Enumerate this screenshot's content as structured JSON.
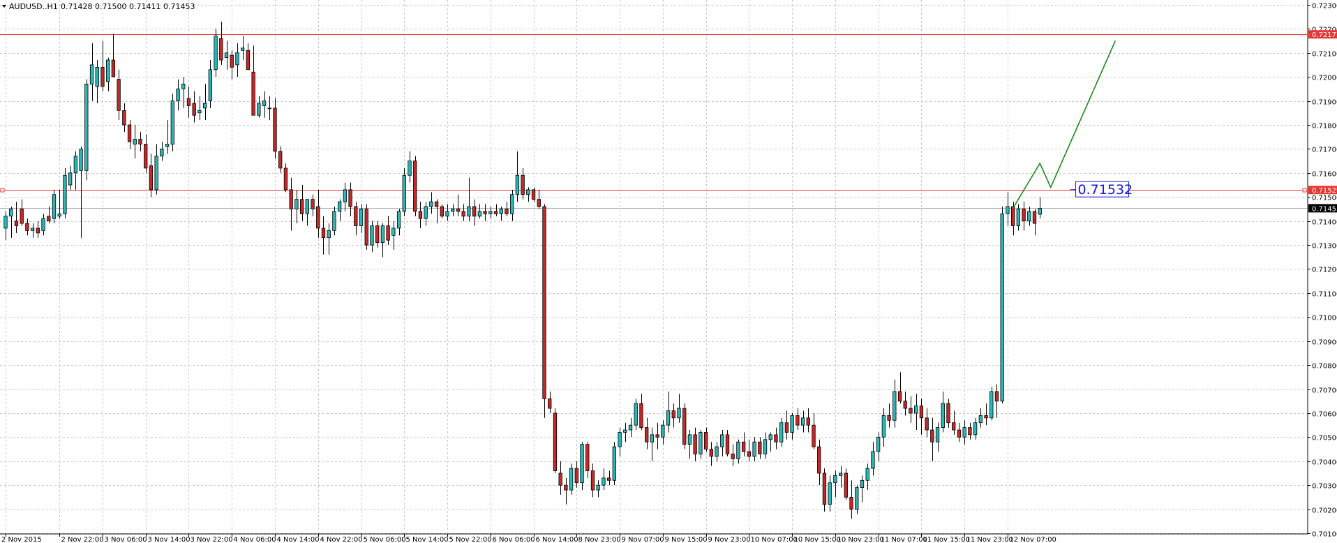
{
  "header": {
    "menu_icon": "triangle-down-icon",
    "symbol": "AUDUSD..H1",
    "ohlc": "0.71428 0.71500 0.71411 0.71453"
  },
  "colors": {
    "background": "#ffffff",
    "grid": "#c8c8c8",
    "bull": "#2bb7b7",
    "bear": "#c62828",
    "wick": "#000000",
    "level_line": "#e53935",
    "current_price_line": "#b0b0b0",
    "forecast": "#1a8a1a",
    "annotation": "#1414e6"
  },
  "chart_data": {
    "type": "candlestick",
    "instrument": "AUDUSD",
    "timeframe": "H1",
    "ylim": [
      0.701,
      0.7232
    ],
    "y_ticks": [
      "0.72300",
      "0.72200",
      "0.72100",
      "0.72000",
      "0.71900",
      "0.71800",
      "0.71700",
      "0.71600",
      "0.71500",
      "0.71400",
      "0.71300",
      "0.71200",
      "0.71100",
      "0.71000",
      "0.70900",
      "0.70800",
      "0.70700",
      "0.70600",
      "0.70500",
      "0.70400",
      "0.70300",
      "0.70200",
      "0.70100"
    ],
    "x_ticks": [
      {
        "label": "2 Nov 2015",
        "bar": 0
      },
      {
        "label": "2 Nov 22:00",
        "bar": 10
      },
      {
        "label": "3 Nov 06:00",
        "bar": 18
      },
      {
        "label": "3 Nov 14:00",
        "bar": 26
      },
      {
        "label": "3 Nov 22:00",
        "bar": 34
      },
      {
        "label": "4 Nov 06:00",
        "bar": 42
      },
      {
        "label": "4 Nov 14:00",
        "bar": 50
      },
      {
        "label": "4 Nov 22:00",
        "bar": 58
      },
      {
        "label": "5 Nov 06:00",
        "bar": 66
      },
      {
        "label": "5 Nov 14:00",
        "bar": 74
      },
      {
        "label": "5 Nov 22:00",
        "bar": 82
      },
      {
        "label": "6 Nov 06:00",
        "bar": 90
      },
      {
        "label": "6 Nov 14:00",
        "bar": 98
      },
      {
        "label": "8 Nov 23:00",
        "bar": 106
      },
      {
        "label": "9 Nov 07:00",
        "bar": 114
      },
      {
        "label": "9 Nov 15:00",
        "bar": 122
      },
      {
        "label": "9 Nov 23:00",
        "bar": 130
      },
      {
        "label": "10 Nov 07:00",
        "bar": 138
      },
      {
        "label": "10 Nov 15:00",
        "bar": 146
      },
      {
        "label": "10 Nov 23:00",
        "bar": 154
      },
      {
        "label": "11 Nov 07:00",
        "bar": 162
      },
      {
        "label": "11 Nov 15:00",
        "bar": 170
      },
      {
        "label": "11 Nov 23:00",
        "bar": 178
      },
      {
        "label": "12 Nov 07:00",
        "bar": 186
      }
    ],
    "candles": [
      [
        0.7137,
        0.7144,
        0.7132,
        0.7142
      ],
      [
        0.7142,
        0.7146,
        0.7133,
        0.7145
      ],
      [
        0.714,
        0.7148,
        0.7135,
        0.7138
      ],
      [
        0.7145,
        0.7149,
        0.7138,
        0.7139
      ],
      [
        0.7139,
        0.7141,
        0.7134,
        0.7136
      ],
      [
        0.7136,
        0.7139,
        0.7133,
        0.7137
      ],
      [
        0.7137,
        0.714,
        0.7133,
        0.7135
      ],
      [
        0.7136,
        0.7143,
        0.7134,
        0.7141
      ],
      [
        0.7142,
        0.7146,
        0.7139,
        0.714
      ],
      [
        0.7141,
        0.7153,
        0.7139,
        0.7151
      ],
      [
        0.7142,
        0.7153,
        0.7141,
        0.7143
      ],
      [
        0.7143,
        0.7162,
        0.7141,
        0.7159
      ],
      [
        0.7155,
        0.7163,
        0.7153,
        0.716
      ],
      [
        0.716,
        0.7169,
        0.7153,
        0.7167
      ],
      [
        0.7161,
        0.7171,
        0.7133,
        0.717
      ],
      [
        0.7161,
        0.7199,
        0.7157,
        0.7197
      ],
      [
        0.7197,
        0.7214,
        0.719,
        0.7205
      ],
      [
        0.7196,
        0.7207,
        0.7189,
        0.7204
      ],
      [
        0.7204,
        0.7215,
        0.7194,
        0.7196
      ],
      [
        0.7198,
        0.7208,
        0.7194,
        0.7207
      ],
      [
        0.7207,
        0.7218,
        0.7201,
        0.72
      ],
      [
        0.7199,
        0.7203,
        0.7182,
        0.7186
      ],
      [
        0.7186,
        0.7189,
        0.7177,
        0.718
      ],
      [
        0.718,
        0.7182,
        0.717,
        0.7173
      ],
      [
        0.7172,
        0.718,
        0.7166,
        0.7174
      ],
      [
        0.7174,
        0.7177,
        0.7169,
        0.7172
      ],
      [
        0.7172,
        0.7176,
        0.716,
        0.7162
      ],
      [
        0.7163,
        0.7168,
        0.715,
        0.7153
      ],
      [
        0.7153,
        0.7172,
        0.7151,
        0.7167
      ],
      [
        0.7167,
        0.7173,
        0.7165,
        0.717
      ],
      [
        0.7171,
        0.7182,
        0.7168,
        0.7172
      ],
      [
        0.7172,
        0.7193,
        0.7169,
        0.719
      ],
      [
        0.719,
        0.7199,
        0.7186,
        0.7195
      ],
      [
        0.7195,
        0.72,
        0.7187,
        0.7197
      ],
      [
        0.7191,
        0.7196,
        0.7183,
        0.7188
      ],
      [
        0.7189,
        0.7194,
        0.7181,
        0.7184
      ],
      [
        0.7185,
        0.7192,
        0.7182,
        0.7186
      ],
      [
        0.7187,
        0.7197,
        0.7182,
        0.7189
      ],
      [
        0.719,
        0.7207,
        0.7187,
        0.7203
      ],
      [
        0.7203,
        0.722,
        0.72,
        0.7217
      ],
      [
        0.7216,
        0.7223,
        0.7205,
        0.7207
      ],
      [
        0.7208,
        0.7215,
        0.7203,
        0.721
      ],
      [
        0.7209,
        0.7211,
        0.7199,
        0.7204
      ],
      [
        0.7205,
        0.7214,
        0.72,
        0.721
      ],
      [
        0.7211,
        0.7217,
        0.7207,
        0.7212
      ],
      [
        0.7211,
        0.7214,
        0.7203,
        0.7203
      ],
      [
        0.7202,
        0.7213,
        0.7184,
        0.7184
      ],
      [
        0.7184,
        0.7192,
        0.7183,
        0.7189
      ],
      [
        0.7188,
        0.7194,
        0.7183,
        0.719
      ],
      [
        0.7187,
        0.7192,
        0.7182,
        0.7187
      ],
      [
        0.7187,
        0.7191,
        0.7166,
        0.7169
      ],
      [
        0.7169,
        0.7171,
        0.716,
        0.7162
      ],
      [
        0.7162,
        0.7164,
        0.7152,
        0.7153
      ],
      [
        0.7153,
        0.7158,
        0.7136,
        0.7145
      ],
      [
        0.7145,
        0.7153,
        0.7139,
        0.7149
      ],
      [
        0.7149,
        0.7155,
        0.714,
        0.7143
      ],
      [
        0.7143,
        0.7149,
        0.7138,
        0.7149
      ],
      [
        0.7149,
        0.7151,
        0.7142,
        0.7145
      ],
      [
        0.7146,
        0.7153,
        0.7133,
        0.7137
      ],
      [
        0.7137,
        0.7142,
        0.7126,
        0.7133
      ],
      [
        0.7133,
        0.7139,
        0.7126,
        0.7136
      ],
      [
        0.7136,
        0.7146,
        0.7134,
        0.7144
      ],
      [
        0.7144,
        0.7149,
        0.714,
        0.7148
      ],
      [
        0.7148,
        0.7156,
        0.7144,
        0.7153
      ],
      [
        0.7153,
        0.7156,
        0.7142,
        0.7146
      ],
      [
        0.7146,
        0.7148,
        0.7134,
        0.7138
      ],
      [
        0.7138,
        0.7147,
        0.7135,
        0.7145
      ],
      [
        0.7145,
        0.7147,
        0.7128,
        0.713
      ],
      [
        0.713,
        0.714,
        0.7127,
        0.7138
      ],
      [
        0.7138,
        0.714,
        0.7129,
        0.7131
      ],
      [
        0.7131,
        0.7139,
        0.7125,
        0.7138
      ],
      [
        0.7138,
        0.7142,
        0.713,
        0.7132
      ],
      [
        0.7134,
        0.714,
        0.7128,
        0.7137
      ],
      [
        0.7137,
        0.7145,
        0.7134,
        0.7144
      ],
      [
        0.7144,
        0.7162,
        0.7142,
        0.7159
      ],
      [
        0.7159,
        0.7169,
        0.7156,
        0.7165
      ],
      [
        0.7165,
        0.7167,
        0.7142,
        0.7144
      ],
      [
        0.7144,
        0.7148,
        0.7137,
        0.7141
      ],
      [
        0.7141,
        0.7148,
        0.7138,
        0.7146
      ],
      [
        0.7146,
        0.7152,
        0.7143,
        0.7148
      ],
      [
        0.7148,
        0.7149,
        0.7139,
        0.7146
      ],
      [
        0.7146,
        0.7147,
        0.7141,
        0.7142
      ],
      [
        0.7142,
        0.7147,
        0.714,
        0.7144
      ],
      [
        0.7144,
        0.7147,
        0.7142,
        0.7145
      ],
      [
        0.7145,
        0.7151,
        0.7142,
        0.7144
      ],
      [
        0.7144,
        0.7147,
        0.714,
        0.7142
      ],
      [
        0.7142,
        0.7158,
        0.714,
        0.7146
      ],
      [
        0.7146,
        0.7149,
        0.7138,
        0.7142
      ],
      [
        0.7142,
        0.7147,
        0.7141,
        0.7144
      ],
      [
        0.7144,
        0.7147,
        0.714,
        0.7143
      ],
      [
        0.7143,
        0.7146,
        0.7141,
        0.7144
      ],
      [
        0.7144,
        0.7147,
        0.7142,
        0.7143
      ],
      [
        0.7143,
        0.7146,
        0.714,
        0.7145
      ],
      [
        0.7145,
        0.7148,
        0.7142,
        0.7143
      ],
      [
        0.7143,
        0.7153,
        0.714,
        0.7151
      ],
      [
        0.7151,
        0.7169,
        0.7148,
        0.7159
      ],
      [
        0.7159,
        0.7162,
        0.7149,
        0.7151
      ],
      [
        0.7151,
        0.7154,
        0.7148,
        0.7153
      ],
      [
        0.7153,
        0.7154,
        0.7148,
        0.7149
      ],
      [
        0.7149,
        0.7153,
        0.7145,
        0.7146
      ],
      [
        0.7146,
        0.7147,
        0.7058,
        0.7066
      ],
      [
        0.7066,
        0.7069,
        0.706,
        0.7062
      ],
      [
        0.706,
        0.7062,
        0.7035,
        0.7036
      ],
      [
        0.7035,
        0.704,
        0.7026,
        0.703
      ],
      [
        0.703,
        0.7033,
        0.7022,
        0.7028
      ],
      [
        0.7028,
        0.7039,
        0.7026,
        0.7037
      ],
      [
        0.7037,
        0.704,
        0.7029,
        0.7031
      ],
      [
        0.7031,
        0.7048,
        0.7028,
        0.7047
      ],
      [
        0.7047,
        0.7048,
        0.7033,
        0.7036
      ],
      [
        0.7036,
        0.7039,
        0.7025,
        0.7028
      ],
      [
        0.7028,
        0.7032,
        0.7025,
        0.703
      ],
      [
        0.703,
        0.7037,
        0.7028,
        0.7033
      ],
      [
        0.7033,
        0.7036,
        0.703,
        0.7032
      ],
      [
        0.7032,
        0.7048,
        0.703,
        0.7046
      ],
      [
        0.7046,
        0.7054,
        0.7042,
        0.7052
      ],
      [
        0.7052,
        0.7056,
        0.7048,
        0.7053
      ],
      [
        0.7053,
        0.7058,
        0.705,
        0.7055
      ],
      [
        0.7055,
        0.7066,
        0.7053,
        0.7064
      ],
      [
        0.7064,
        0.7068,
        0.7053,
        0.7054
      ],
      [
        0.7054,
        0.7058,
        0.7045,
        0.7048
      ],
      [
        0.7048,
        0.7054,
        0.704,
        0.7051
      ],
      [
        0.7051,
        0.7056,
        0.7045,
        0.705
      ],
      [
        0.705,
        0.7057,
        0.7047,
        0.7055
      ],
      [
        0.7055,
        0.7069,
        0.7052,
        0.7061
      ],
      [
        0.7061,
        0.7064,
        0.7054,
        0.7058
      ],
      [
        0.7058,
        0.7068,
        0.7056,
        0.7062
      ],
      [
        0.7062,
        0.7064,
        0.7045,
        0.7047
      ],
      [
        0.7047,
        0.7053,
        0.7041,
        0.7051
      ],
      [
        0.7051,
        0.7054,
        0.704,
        0.7043
      ],
      [
        0.7043,
        0.7053,
        0.7041,
        0.7052
      ],
      [
        0.7052,
        0.7054,
        0.7044,
        0.7045
      ],
      [
        0.7045,
        0.7048,
        0.7038,
        0.7042
      ],
      [
        0.7042,
        0.7048,
        0.704,
        0.7046
      ],
      [
        0.7046,
        0.7053,
        0.7042,
        0.7051
      ],
      [
        0.7051,
        0.7053,
        0.7042,
        0.7043
      ],
      [
        0.7043,
        0.7047,
        0.7038,
        0.7041
      ],
      [
        0.7041,
        0.7049,
        0.7039,
        0.7048
      ],
      [
        0.7048,
        0.7052,
        0.7042,
        0.7044
      ],
      [
        0.7044,
        0.7049,
        0.704,
        0.7042
      ],
      [
        0.7042,
        0.705,
        0.704,
        0.7048
      ],
      [
        0.7048,
        0.705,
        0.7041,
        0.7043
      ],
      [
        0.7043,
        0.7052,
        0.7041,
        0.7049
      ],
      [
        0.7049,
        0.7052,
        0.7044,
        0.7051
      ],
      [
        0.7051,
        0.7054,
        0.7045,
        0.7048
      ],
      [
        0.7048,
        0.7058,
        0.7046,
        0.7056
      ],
      [
        0.7056,
        0.7061,
        0.7049,
        0.7052
      ],
      [
        0.7052,
        0.706,
        0.7049,
        0.7059
      ],
      [
        0.7059,
        0.7062,
        0.7053,
        0.7055
      ],
      [
        0.7055,
        0.7061,
        0.7052,
        0.7058
      ],
      [
        0.7058,
        0.7062,
        0.7052,
        0.7055
      ],
      [
        0.7055,
        0.706,
        0.7045,
        0.7046
      ],
      [
        0.7046,
        0.7049,
        0.703,
        0.7035
      ],
      [
        0.7035,
        0.7037,
        0.7019,
        0.7022
      ],
      [
        0.7022,
        0.7034,
        0.7019,
        0.7031
      ],
      [
        0.7031,
        0.7036,
        0.7025,
        0.7034
      ],
      [
        0.7034,
        0.7038,
        0.7029,
        0.7035
      ],
      [
        0.7035,
        0.7037,
        0.7024,
        0.7025
      ],
      [
        0.7025,
        0.7032,
        0.7016,
        0.702
      ],
      [
        0.702,
        0.703,
        0.7018,
        0.7029
      ],
      [
        0.7029,
        0.7034,
        0.7023,
        0.7032
      ],
      [
        0.7032,
        0.7039,
        0.7028,
        0.7037
      ],
      [
        0.7037,
        0.7048,
        0.7034,
        0.7044
      ],
      [
        0.7044,
        0.7052,
        0.704,
        0.705
      ],
      [
        0.705,
        0.7062,
        0.7046,
        0.7059
      ],
      [
        0.7059,
        0.7064,
        0.7054,
        0.7057
      ],
      [
        0.7057,
        0.7074,
        0.7054,
        0.7069
      ],
      [
        0.7069,
        0.7077,
        0.7064,
        0.7065
      ],
      [
        0.7065,
        0.7069,
        0.7059,
        0.7062
      ],
      [
        0.7062,
        0.7067,
        0.7056,
        0.706
      ],
      [
        0.706,
        0.7068,
        0.7053,
        0.7063
      ],
      [
        0.7063,
        0.7066,
        0.7051,
        0.7058
      ],
      [
        0.7058,
        0.7062,
        0.705,
        0.7053
      ],
      [
        0.7053,
        0.7058,
        0.704,
        0.7048
      ],
      [
        0.7048,
        0.7056,
        0.7044,
        0.7054
      ],
      [
        0.7054,
        0.7069,
        0.7052,
        0.7064
      ],
      [
        0.7064,
        0.7066,
        0.7054,
        0.7056
      ],
      [
        0.7056,
        0.7061,
        0.7051,
        0.7053
      ],
      [
        0.7053,
        0.7056,
        0.7048,
        0.705
      ],
      [
        0.705,
        0.7057,
        0.7047,
        0.7054
      ],
      [
        0.7054,
        0.7056,
        0.7049,
        0.7051
      ],
      [
        0.7051,
        0.7058,
        0.7049,
        0.7056
      ],
      [
        0.7056,
        0.7062,
        0.7054,
        0.7059
      ],
      [
        0.7059,
        0.7064,
        0.7055,
        0.7058
      ],
      [
        0.7058,
        0.7071,
        0.7057,
        0.7069
      ],
      [
        0.7069,
        0.7072,
        0.7058,
        0.7065
      ],
      [
        0.7065,
        0.7146,
        0.7064,
        0.7143
      ],
      [
        0.7143,
        0.7152,
        0.7138,
        0.7146
      ],
      [
        0.7146,
        0.7148,
        0.7134,
        0.7138
      ],
      [
        0.7138,
        0.7147,
        0.7136,
        0.7145
      ],
      [
        0.7145,
        0.7148,
        0.7136,
        0.714
      ],
      [
        0.714,
        0.7146,
        0.7138,
        0.7144
      ],
      [
        0.7144,
        0.7145,
        0.7134,
        0.7139
      ],
      [
        0.71428,
        0.715,
        0.71411,
        0.71453
      ]
    ],
    "levels": [
      {
        "price": 0.72177,
        "label": "0.72177"
      },
      {
        "price": 0.71529,
        "label": "0.71529"
      }
    ],
    "current_price": {
      "price": 0.71453,
      "label": "0.71453"
    },
    "forecast_path": [
      {
        "bar": 187,
        "price": 0.71453
      },
      {
        "bar": 192,
        "price": 0.7164
      },
      {
        "bar": 194,
        "price": 0.7154
      },
      {
        "bar": 206,
        "price": 0.7215
      }
    ],
    "annotation": {
      "text": "0.71532",
      "price": 0.71532,
      "bar": 198
    }
  }
}
